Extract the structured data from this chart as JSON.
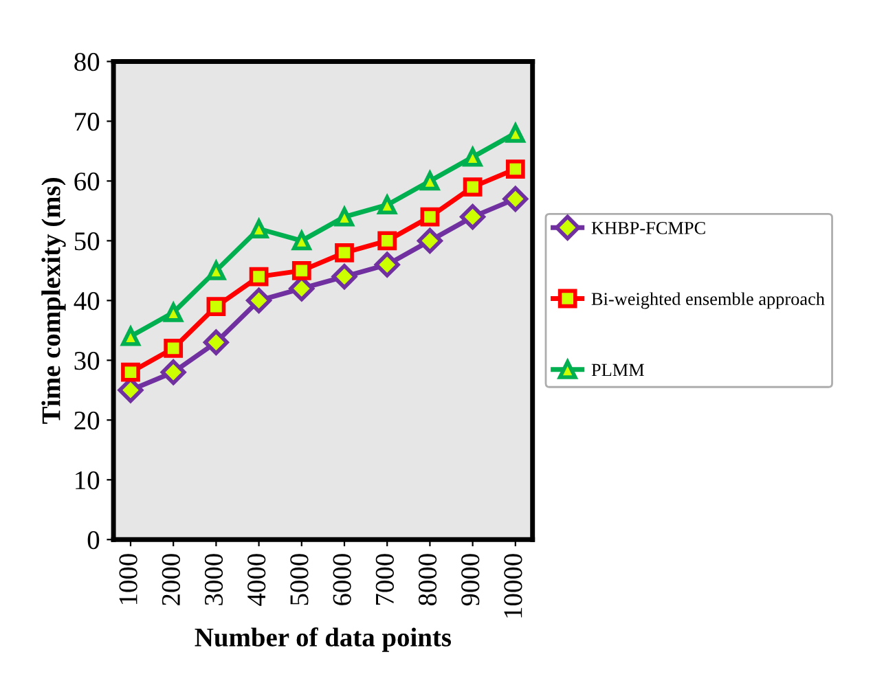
{
  "chart_data": {
    "type": "line",
    "xlabel": "Number of data points",
    "ylabel": "Time complexity (ms)",
    "categories": [
      "1000",
      "2000",
      "3000",
      "4000",
      "5000",
      "6000",
      "7000",
      "8000",
      "9000",
      "10000"
    ],
    "series": [
      {
        "name": "KHBP-FCMPC",
        "color": "#7030a0",
        "marker": "diamond",
        "values": [
          25,
          28,
          33,
          40,
          42,
          44,
          46,
          50,
          54,
          57
        ]
      },
      {
        "name": "Bi-weighted ensemble approach",
        "color": "#ff0000",
        "marker": "square",
        "values": [
          28,
          32,
          39,
          44,
          45,
          48,
          50,
          54,
          59,
          62
        ]
      },
      {
        "name": "PLMM",
        "color": "#00b050",
        "marker": "triangle",
        "values": [
          34,
          38,
          45,
          52,
          50,
          54,
          56,
          60,
          64,
          68
        ]
      }
    ],
    "ylim": [
      0,
      80
    ],
    "yticks": [
      0,
      10,
      20,
      30,
      40,
      50,
      60,
      70,
      80
    ],
    "grid": false,
    "legend": "right"
  }
}
